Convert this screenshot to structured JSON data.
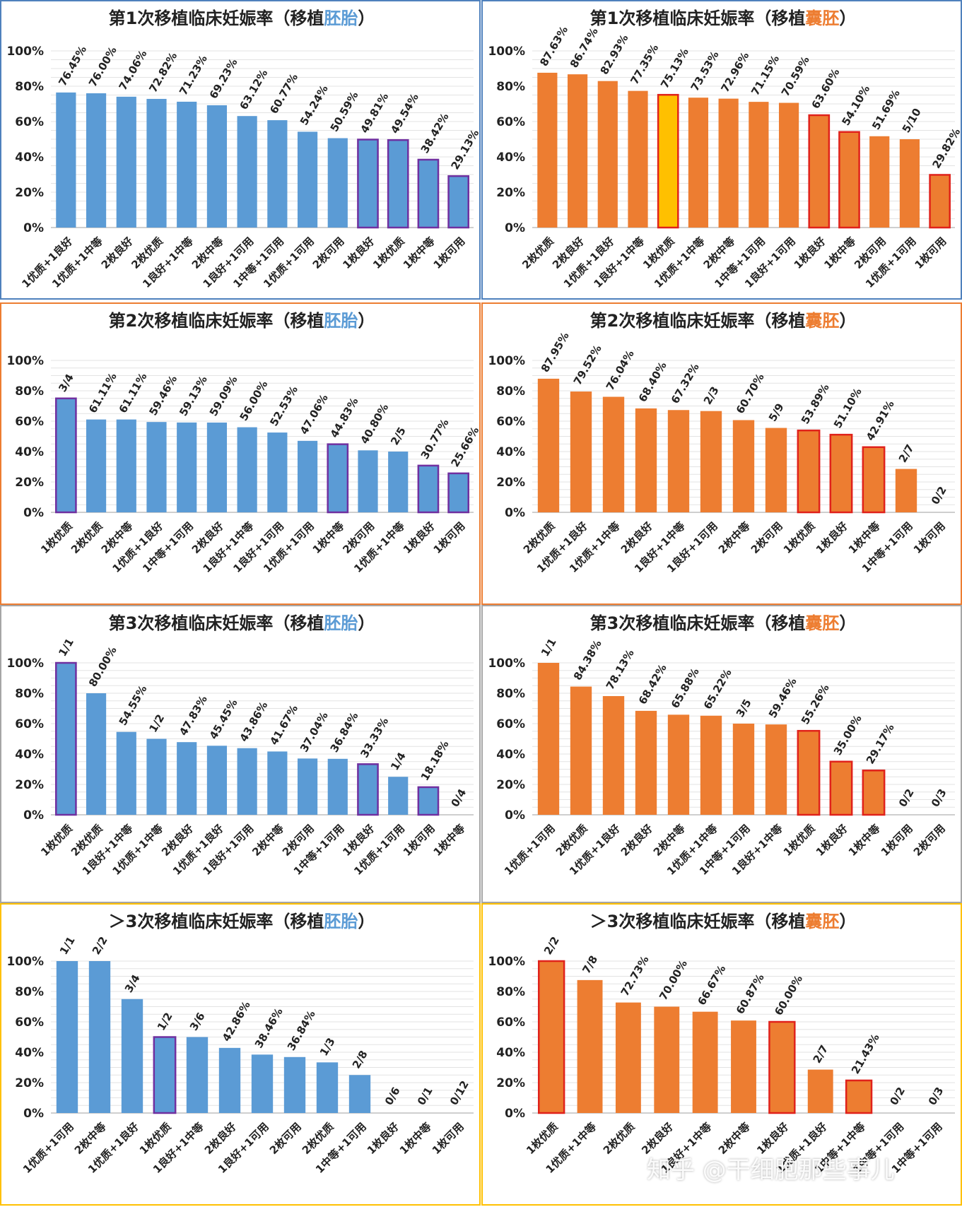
{
  "colors": {
    "embryo_bar": "#5B9BD5",
    "blastocyst_bar": "#ED7D31",
    "highlight_purple": "#7030A0",
    "highlight_red": "#E0221B",
    "highlight_yellow": "#FFC000",
    "title_embryo_accent": "#5B9BD5",
    "title_blastocyst_accent": "#ED7D31",
    "border_row1": "#4F81BD",
    "border_row2": "#ED7D31",
    "border_row3": "#A6A6A6",
    "border_row4": "#FFC000"
  },
  "watermark": "知乎 @干细胞那些事儿",
  "chart_data": [
    {
      "type": "bar",
      "title_prefix": "第1次移植临床妊娠率（移植",
      "title_accent": "胚胎",
      "title_suffix": "）",
      "ylim": [
        0,
        100
      ],
      "yticks": [
        "0%",
        "20%",
        "40%",
        "60%",
        "80%",
        "100%"
      ],
      "categories": [
        "1优质+1良好",
        "1优质+1中等",
        "2枚良好",
        "2枚优质",
        "1良好+1中等",
        "2枚中等",
        "1良好+1可用",
        "1中等+1可用",
        "1优质+1可用",
        "2枚可用",
        "1枚良好",
        "1枚优质",
        "1枚中等",
        "1枚可用"
      ],
      "values": [
        76.45,
        76.0,
        74.06,
        72.82,
        71.23,
        69.23,
        63.12,
        60.77,
        54.24,
        50.59,
        49.81,
        49.54,
        38.42,
        29.13
      ],
      "labels": [
        "76.45%",
        "76.00%",
        "74.06%",
        "72.82%",
        "71.23%",
        "69.23%",
        "63.12%",
        "60.77%",
        "54.24%",
        "50.59%",
        "49.81%",
        "49.54%",
        "38.42%",
        "29.13%"
      ],
      "highlight": [
        "",
        "",
        "",
        "",
        "",
        "",
        "",
        "",
        "",
        "",
        "purple",
        "purple",
        "purple",
        "purple"
      ]
    },
    {
      "type": "bar",
      "title_prefix": "第1次移植临床妊娠率（移植",
      "title_accent": "囊胚",
      "title_suffix": "）",
      "ylim": [
        0,
        100
      ],
      "yticks": [
        "0%",
        "20%",
        "40%",
        "60%",
        "80%",
        "100%"
      ],
      "categories": [
        "2枚优质",
        "2枚良好",
        "1优质+1良好",
        "1良好+1中等",
        "1枚优质",
        "1优质+1中等",
        "2枚中等",
        "1中等+1可用",
        "1良好+1可用",
        "1枚良好",
        "1枚中等",
        "2枚可用",
        "1优质+1可用",
        "1枚可用"
      ],
      "values": [
        87.63,
        86.74,
        82.93,
        77.35,
        75.13,
        73.53,
        72.96,
        71.15,
        70.59,
        63.6,
        54.1,
        51.69,
        50.0,
        29.82
      ],
      "labels": [
        "87.63%",
        "86.74%",
        "82.93%",
        "77.35%",
        "75.13%",
        "73.53%",
        "72.96%",
        "71.15%",
        "70.59%",
        "63.60%",
        "54.10%",
        "51.69%",
        "5/10",
        "29.82%"
      ],
      "highlight": [
        "",
        "",
        "",
        "",
        "yellow",
        "",
        "",
        "",
        "",
        "red",
        "red",
        "",
        "",
        "red"
      ]
    },
    {
      "type": "bar",
      "title_prefix": "第2次移植临床妊娠率（移植",
      "title_accent": "胚胎",
      "title_suffix": "）",
      "ylim": [
        0,
        100
      ],
      "yticks": [
        "0%",
        "20%",
        "40%",
        "60%",
        "80%",
        "100%"
      ],
      "categories": [
        "1枚优质",
        "2枚优质",
        "2枚中等",
        "1优质+1良好",
        "1中等+1可用",
        "2枚良好",
        "1良好+1中等",
        "1良好+1可用",
        "1优质+1可用",
        "1枚中等",
        "2枚可用",
        "1优质+1中等",
        "1枚良好",
        "1枚可用"
      ],
      "values": [
        75.0,
        61.11,
        61.11,
        59.46,
        59.13,
        59.09,
        56.0,
        52.53,
        47.06,
        44.83,
        40.8,
        40.0,
        30.77,
        25.66
      ],
      "labels": [
        "3/4",
        "61.11%",
        "61.11%",
        "59.46%",
        "59.13%",
        "59.09%",
        "56.00%",
        "52.53%",
        "47.06%",
        "44.83%",
        "40.80%",
        "2/5",
        "30.77%",
        "25.66%"
      ],
      "highlight": [
        "purple",
        "",
        "",
        "",
        "",
        "",
        "",
        "",
        "",
        "purple",
        "",
        "",
        "purple",
        "purple"
      ]
    },
    {
      "type": "bar",
      "title_prefix": "第2次移植临床妊娠率（移植",
      "title_accent": "囊胚",
      "title_suffix": "）",
      "ylim": [
        0,
        100
      ],
      "yticks": [
        "0%",
        "20%",
        "40%",
        "60%",
        "80%",
        "100%"
      ],
      "categories": [
        "2枚优质",
        "1优质+1良好",
        "1优质+1中等",
        "2枚良好",
        "1良好+1中等",
        "1良好+1可用",
        "2枚中等",
        "2枚可用",
        "1枚优质",
        "1枚良好",
        "1枚中等",
        "1中等+1可用",
        "1枚可用"
      ],
      "values": [
        87.95,
        79.52,
        76.04,
        68.4,
        67.32,
        66.67,
        60.7,
        55.56,
        53.89,
        51.1,
        42.91,
        28.57,
        0
      ],
      "labels": [
        "87.95%",
        "79.52%",
        "76.04%",
        "68.40%",
        "67.32%",
        "2/3",
        "60.70%",
        "5/9",
        "53.89%",
        "51.10%",
        "42.91%",
        "2/7",
        "0/2"
      ],
      "highlight": [
        "",
        "",
        "",
        "",
        "",
        "",
        "",
        "",
        "red",
        "red",
        "red",
        "",
        ""
      ]
    },
    {
      "type": "bar",
      "title_prefix": "第3次移植临床妊娠率（移植",
      "title_accent": "胚胎",
      "title_suffix": "）",
      "ylim": [
        0,
        100
      ],
      "yticks": [
        "0%",
        "20%",
        "40%",
        "60%",
        "80%",
        "100%"
      ],
      "categories": [
        "1枚优质",
        "2枚优质",
        "1良好+1中等",
        "1优质+1中等",
        "2枚良好",
        "1优质+1良好",
        "1良好+1可用",
        "2枚中等",
        "2枚可用",
        "1中等+1可用",
        "1枚良好",
        "1优质+1可用",
        "1枚可用",
        "1枚中等"
      ],
      "values": [
        100,
        80.0,
        54.55,
        50.0,
        47.83,
        45.45,
        43.86,
        41.67,
        37.04,
        36.84,
        33.33,
        25.0,
        18.18,
        0
      ],
      "labels": [
        "1/1",
        "80.00%",
        "54.55%",
        "1/2",
        "47.83%",
        "45.45%",
        "43.86%",
        "41.67%",
        "37.04%",
        "36.84%",
        "33.33%",
        "1/4",
        "18.18%",
        "0/4"
      ],
      "highlight": [
        "purple",
        "",
        "",
        "",
        "",
        "",
        "",
        "",
        "",
        "",
        "purple",
        "",
        "purple",
        ""
      ]
    },
    {
      "type": "bar",
      "title_prefix": "第3次移植临床妊娠率（移植",
      "title_accent": "囊胚",
      "title_suffix": "）",
      "ylim": [
        0,
        100
      ],
      "yticks": [
        "0%",
        "20%",
        "40%",
        "60%",
        "80%",
        "100%"
      ],
      "categories": [
        "1优质+1可用",
        "2枚优质",
        "1优质+1良好",
        "2枚良好",
        "2枚中等",
        "1优质+1中等",
        "1中等+1可用",
        "1良好+1中等",
        "1枚优质",
        "1枚良好",
        "1枚中等",
        "1枚可用",
        "2枚可用"
      ],
      "values": [
        100,
        84.38,
        78.13,
        68.42,
        65.88,
        65.22,
        60.0,
        59.46,
        55.26,
        35.0,
        29.17,
        0,
        0
      ],
      "labels": [
        "1/1",
        "84.38%",
        "78.13%",
        "68.42%",
        "65.88%",
        "65.22%",
        "3/5",
        "59.46%",
        "55.26%",
        "35.00%",
        "29.17%",
        "0/2",
        "0/3"
      ],
      "highlight": [
        "",
        "",
        "",
        "",
        "",
        "",
        "",
        "",
        "red",
        "red",
        "red",
        "",
        ""
      ]
    },
    {
      "type": "bar",
      "title_prefix": "＞3次移植临床妊娠率（移植",
      "title_accent": "胚胎",
      "title_suffix": "）",
      "ylim": [
        0,
        100
      ],
      "yticks": [
        "0%",
        "20%",
        "40%",
        "60%",
        "80%",
        "100%"
      ],
      "categories": [
        "1优质+1可用",
        "2枚中等",
        "1优质+1良好",
        "1枚优质",
        "1良好+1中等",
        "2枚良好",
        "1良好+1可用",
        "2枚可用",
        "2枚优质",
        "1中等+1可用",
        "1枚良好",
        "1枚中等",
        "1枚可用"
      ],
      "values": [
        100,
        100,
        75.0,
        50.0,
        50.0,
        42.86,
        38.46,
        36.84,
        33.33,
        25.0,
        0,
        0,
        0
      ],
      "labels": [
        "1/1",
        "2/2",
        "3/4",
        "1/2",
        "3/6",
        "42.86%",
        "38.46%",
        "36.84%",
        "1/3",
        "2/8",
        "0/6",
        "0/1",
        "0/12"
      ],
      "highlight": [
        "",
        "",
        "",
        "purple",
        "",
        "",
        "",
        "",
        "",
        "",
        "",
        "",
        ""
      ]
    },
    {
      "type": "bar",
      "title_prefix": "＞3次移植临床妊娠率（移植",
      "title_accent": "囊胚",
      "title_suffix": "）",
      "ylim": [
        0,
        100
      ],
      "yticks": [
        "0%",
        "20%",
        "40%",
        "60%",
        "80%",
        "100%"
      ],
      "categories": [
        "1枚优质",
        "1优质+1中等",
        "2枚优质",
        "2枚良好",
        "1良好+1中等",
        "2枚中等",
        "1枚良好",
        "1优质+1良好",
        "1中等+1中等",
        "1中等+1可用",
        "1中等+1可用"
      ],
      "values": [
        100,
        87.5,
        72.73,
        70.0,
        66.67,
        60.87,
        60.0,
        28.57,
        21.43,
        0,
        0
      ],
      "labels": [
        "2/2",
        "7/8",
        "72.73%",
        "70.00%",
        "66.67%",
        "60.87%",
        "60.00%",
        "2/7",
        "21.43%",
        "0/2",
        "0/3"
      ],
      "highlight": [
        "red",
        "",
        "",
        "",
        "",
        "",
        "red",
        "",
        "red",
        "",
        ""
      ]
    }
  ]
}
